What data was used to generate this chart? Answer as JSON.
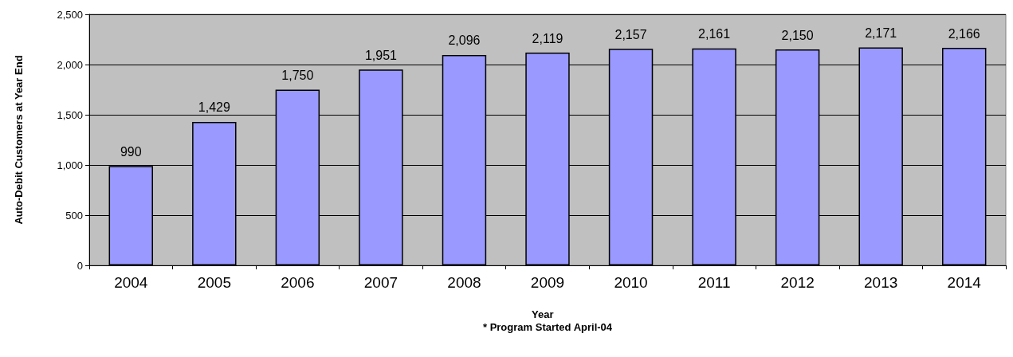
{
  "chart_data": {
    "type": "bar",
    "ylabel": "Auto-Debit Customers at Year End",
    "xlabel": "Year",
    "annotations": [
      "* Program Started April-04"
    ],
    "categories": [
      "2004",
      "2005",
      "2006",
      "2007",
      "2008",
      "2009",
      "2010",
      "2011",
      "2012",
      "2013",
      "2014"
    ],
    "values": [
      990,
      1429,
      1750,
      1951,
      2096,
      2119,
      2157,
      2161,
      2150,
      2171,
      2166
    ],
    "color": "#9999ff",
    "value_labels": [
      "990",
      "1,429",
      "1,750",
      "1,951",
      "2,096",
      "2,119",
      "2,157",
      "2,161",
      "2,150",
      "2,171",
      "2,166"
    ],
    "ylim": [
      0,
      2500
    ],
    "yticks": [
      0,
      500,
      {
        "value": 1000,
        "label": "1,000"
      },
      {
        "value": 1500,
        "label": "1,500"
      },
      {
        "value": 2000,
        "label": "2,000"
      },
      {
        "value": 2500,
        "label": "2,500"
      }
    ],
    "grid": "y"
  }
}
